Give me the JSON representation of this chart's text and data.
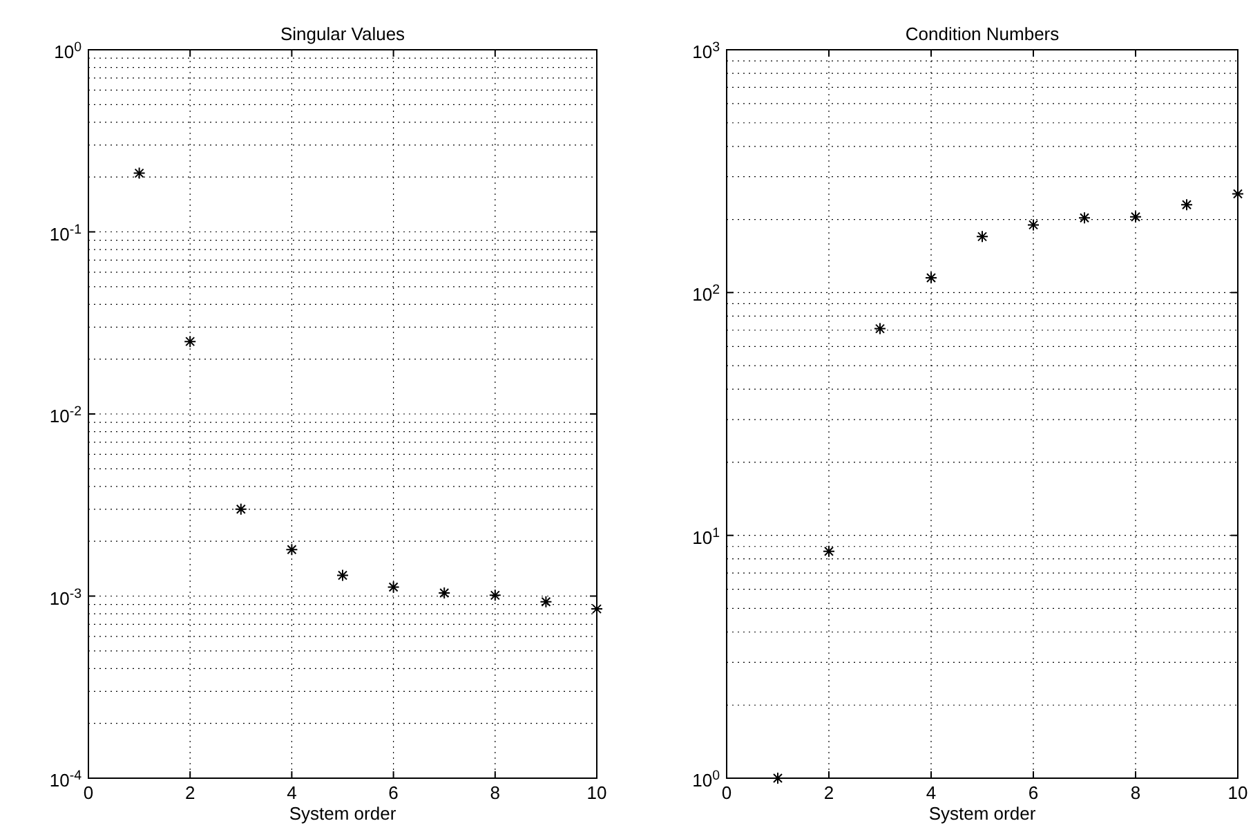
{
  "chart_data": [
    {
      "type": "scatter",
      "title": "Singular Values",
      "xlabel": "System order",
      "x": [
        1,
        2,
        3,
        4,
        5,
        6,
        7,
        8,
        9,
        10
      ],
      "series": [
        {
          "color": "#000000",
          "values": [
            0.21,
            0.025,
            0.003,
            0.0018,
            0.0013,
            0.00112,
            0.00104,
            0.00101,
            0.00093,
            0.00085
          ]
        }
      ],
      "xlim": [
        0,
        10
      ],
      "xticks": [
        0,
        2,
        4,
        6,
        8,
        10
      ],
      "ylim": [
        0.0001,
        1
      ],
      "yticks": [
        {
          "value": 0.0001,
          "label": "10$^{-4}$"
        },
        {
          "value": 0.001,
          "label": "10$^{-3}$"
        },
        {
          "value": 0.01,
          "label": "10$^{-2}$"
        },
        {
          "value": 0.1,
          "label": "10$^{-1}$"
        },
        {
          "value": 1,
          "label": "10$^{0}$"
        }
      ],
      "log": "y",
      "grid": true,
      "marker": "cross"
    },
    {
      "type": "scatter",
      "title": "Condition Numbers",
      "xlabel": "System order",
      "x": [
        1,
        2,
        3,
        4,
        5,
        6,
        7,
        8,
        9,
        10
      ],
      "series": [
        {
          "color": "#000000",
          "values": [
            1,
            8.6,
            71,
            115,
            170,
            190,
            203,
            205,
            230,
            255
          ]
        }
      ],
      "xlim": [
        0,
        10
      ],
      "xticks": [
        0,
        2,
        4,
        6,
        8,
        10
      ],
      "ylim": [
        1,
        1000
      ],
      "yticks": [
        {
          "value": 1,
          "label": "10$^{0}$"
        },
        {
          "value": 10,
          "label": "10$^{1}$"
        },
        {
          "value": 100,
          "label": "10$^{2}$"
        },
        {
          "value": 1000,
          "label": "10$^{3}$"
        }
      ],
      "log": "y",
      "grid": true,
      "marker": "cross"
    }
  ]
}
